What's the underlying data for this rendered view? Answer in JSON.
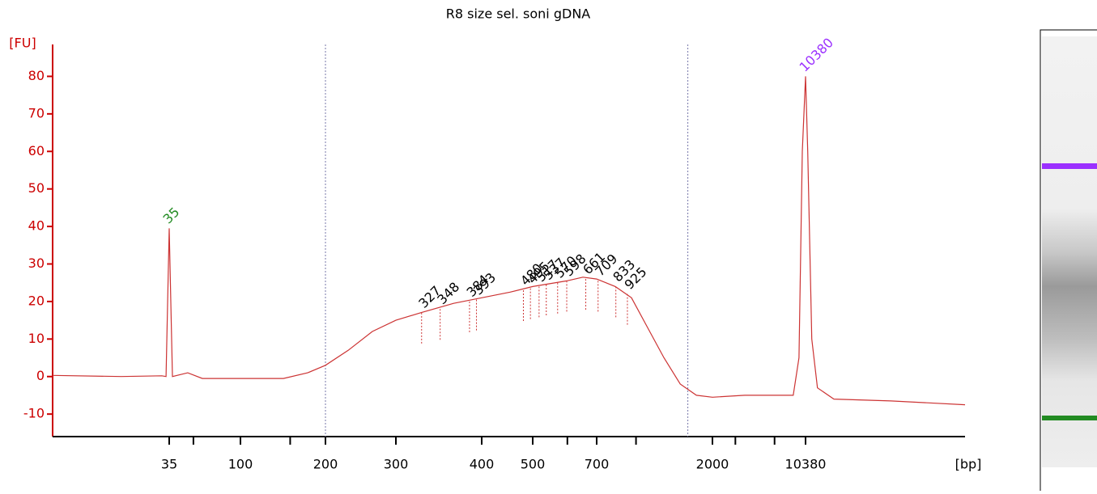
{
  "chart_data": {
    "type": "line",
    "title": "R8 size sel. soni gDNA",
    "ylabel": "[FU]",
    "xlabel": "[bp]",
    "log_x": true,
    "xlim": [
      6.3,
      170000
    ],
    "ylim": [
      -16,
      88.5
    ],
    "xticks": [
      35,
      100,
      200,
      300,
      400,
      500,
      700,
      2000,
      10380
    ],
    "minor_xticks": [
      50,
      150,
      600,
      1000,
      3000,
      6000
    ],
    "yticks": [
      -10,
      0,
      10,
      20,
      30,
      40,
      50,
      60,
      70,
      80
    ],
    "region_bounds": [
      200,
      1600
    ],
    "series": [
      {
        "color": "#cc3333",
        "x": [
          6.3,
          17.3,
          31.4,
          33.4,
          35,
          36.7,
          46,
          57,
          102,
          142,
          173,
          200,
          228,
          262,
          300,
          326,
          364,
          400,
          453,
          500,
          598,
          651,
          700,
          829,
          960,
          1112,
          1288,
          1493,
          1729,
          2000,
          3540,
          6270,
          8350,
          9240,
          9800,
          10380,
          10790,
          11580,
          12780,
          17060,
          46300,
          170000
        ],
        "values": [
          0.3,
          0,
          0.2,
          0,
          39.5,
          0,
          1,
          -0.5,
          -0.5,
          -0.5,
          1,
          3,
          7,
          12,
          15,
          17,
          19.5,
          21,
          22.5,
          24,
          25.5,
          26.5,
          26,
          24,
          21,
          13,
          5,
          -2,
          -5,
          -5.5,
          -5,
          -5,
          -5,
          5,
          60,
          80,
          60,
          10,
          -3,
          -6,
          -6.5,
          -7.5
        ]
      }
    ],
    "markers": [
      {
        "x": 35,
        "y": 39.5,
        "color": "#228b22"
      },
      {
        "x": 10380,
        "y": 80,
        "color": "#9b30ff"
      }
    ],
    "peaks": {
      "x": [
        327,
        348,
        384,
        393,
        480,
        495,
        517,
        537,
        570,
        598,
        661,
        709,
        833,
        925
      ],
      "y": [
        17,
        18,
        20,
        20.5,
        23,
        23.5,
        24,
        24.5,
        25,
        25.5,
        26,
        25.5,
        24,
        22
      ]
    }
  }
}
